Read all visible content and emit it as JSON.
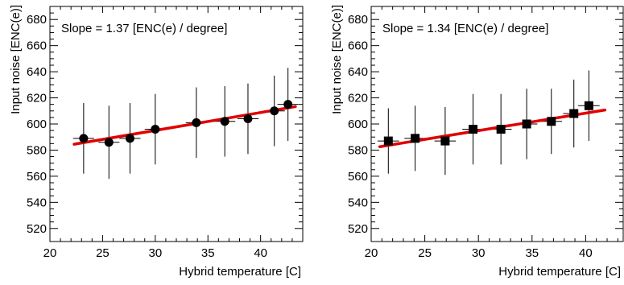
{
  "chart_data": [
    {
      "type": "scatter",
      "marker": "circle",
      "annotation": "Slope = 1.37 [ENC(e) / degree]",
      "xlabel": "Hybrid temperature [C]",
      "ylabel": "Input noise [ENC(e)]",
      "xlim": [
        20,
        44
      ],
      "ylim": [
        510,
        690
      ],
      "x_ticks": [
        "20",
        "25",
        "30",
        "35",
        "40"
      ],
      "y_ticks": [
        "520",
        "540",
        "560",
        "580",
        "600",
        "620",
        "640",
        "660",
        "680"
      ],
      "points": [
        {
          "x": 23.2,
          "y": 589,
          "xerr": 1.0,
          "yerr": 27
        },
        {
          "x": 25.6,
          "y": 586,
          "xerr": 1.0,
          "yerr": 28
        },
        {
          "x": 27.6,
          "y": 589,
          "xerr": 1.0,
          "yerr": 27
        },
        {
          "x": 30.0,
          "y": 596,
          "xerr": 1.0,
          "yerr": 27
        },
        {
          "x": 33.9,
          "y": 601,
          "xerr": 1.0,
          "yerr": 27
        },
        {
          "x": 36.6,
          "y": 602,
          "xerr": 1.0,
          "yerr": 27
        },
        {
          "x": 38.8,
          "y": 604,
          "xerr": 1.0,
          "yerr": 27
        },
        {
          "x": 41.3,
          "y": 610,
          "xerr": 1.0,
          "yerr": 27
        },
        {
          "x": 42.6,
          "y": 615,
          "xerr": 1.0,
          "yerr": 28
        }
      ],
      "fit": {
        "x": [
          22.3,
          43.3
        ],
        "y": [
          584.5,
          613.3
        ],
        "color": "#e00000"
      }
    },
    {
      "type": "scatter",
      "marker": "square",
      "annotation": "Slope = 1.34 [ENC(e) / degree]",
      "xlabel": "Hybrid temperature [C]",
      "ylabel": "Input noise [ENC(e)]",
      "xlim": [
        20,
        43.5
      ],
      "ylim": [
        510,
        690
      ],
      "x_ticks": [
        "20",
        "25",
        "30",
        "35",
        "40"
      ],
      "y_ticks": [
        "520",
        "540",
        "560",
        "580",
        "600",
        "620",
        "640",
        "660",
        "680"
      ],
      "points": [
        {
          "x": 21.6,
          "y": 587,
          "xerr": 1.0,
          "yerr": 25
        },
        {
          "x": 24.1,
          "y": 589,
          "xerr": 1.0,
          "yerr": 25
        },
        {
          "x": 26.9,
          "y": 587,
          "xerr": 1.0,
          "yerr": 26
        },
        {
          "x": 29.5,
          "y": 596,
          "xerr": 1.0,
          "yerr": 27
        },
        {
          "x": 32.1,
          "y": 596,
          "xerr": 1.0,
          "yerr": 27
        },
        {
          "x": 34.5,
          "y": 600,
          "xerr": 1.0,
          "yerr": 27
        },
        {
          "x": 36.8,
          "y": 602,
          "xerr": 1.0,
          "yerr": 25
        },
        {
          "x": 38.9,
          "y": 608,
          "xerr": 1.0,
          "yerr": 26
        },
        {
          "x": 40.3,
          "y": 614,
          "xerr": 1.0,
          "yerr": 27
        }
      ],
      "fit": {
        "x": [
          20.8,
          41.8
        ],
        "y": [
          582.6,
          610.7
        ],
        "color": "#e00000"
      }
    }
  ]
}
